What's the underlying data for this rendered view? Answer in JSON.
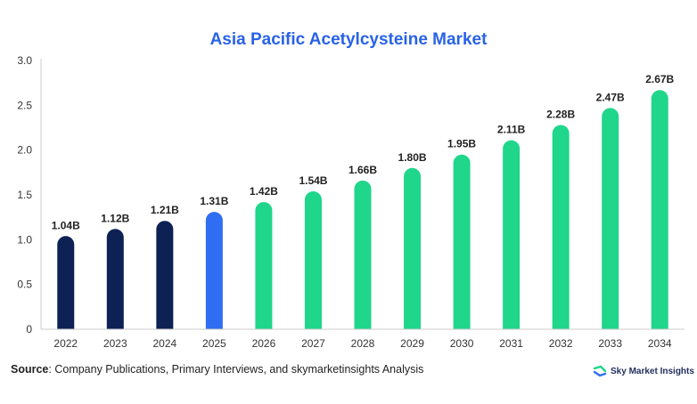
{
  "title": "Asia Pacific Acetylcysteine Market",
  "source": {
    "label": "Source",
    "text": ": Company Publications, Primary Interviews, and skymarketinsights Analysis"
  },
  "brand": {
    "name": "Sky Market Insights",
    "logo_icon": "sky-market-insights-logo-icon"
  },
  "colors": {
    "historical": "#0d2155",
    "current": "#2f6ef2",
    "forecast": "#1fd68a"
  },
  "chart_data": {
    "type": "bar",
    "title": "Asia Pacific Acetylcysteine Market",
    "xlabel": "",
    "ylabel": "",
    "ylim": [
      0,
      3.0
    ],
    "yticks": [
      "0",
      "0.5",
      "1.0",
      "1.5",
      "2.0",
      "2.5",
      "3.0"
    ],
    "grid": false,
    "categories": [
      "2022",
      "2023",
      "2024",
      "2025",
      "2026",
      "2027",
      "2028",
      "2029",
      "2030",
      "2031",
      "2032",
      "2033",
      "2034"
    ],
    "values": [
      1.04,
      1.12,
      1.21,
      1.31,
      1.42,
      1.54,
      1.66,
      1.8,
      1.95,
      2.11,
      2.28,
      2.47,
      2.67
    ],
    "data_labels": [
      "1.04B",
      "1.12B",
      "1.21B",
      "1.31B",
      "1.42B",
      "1.54B",
      "1.66B",
      "1.80B",
      "1.95B",
      "2.11B",
      "2.28B",
      "2.47B",
      "2.67B"
    ],
    "bar_colors": [
      "historical",
      "historical",
      "historical",
      "current",
      "forecast",
      "forecast",
      "forecast",
      "forecast",
      "forecast",
      "forecast",
      "forecast",
      "forecast",
      "forecast"
    ]
  }
}
